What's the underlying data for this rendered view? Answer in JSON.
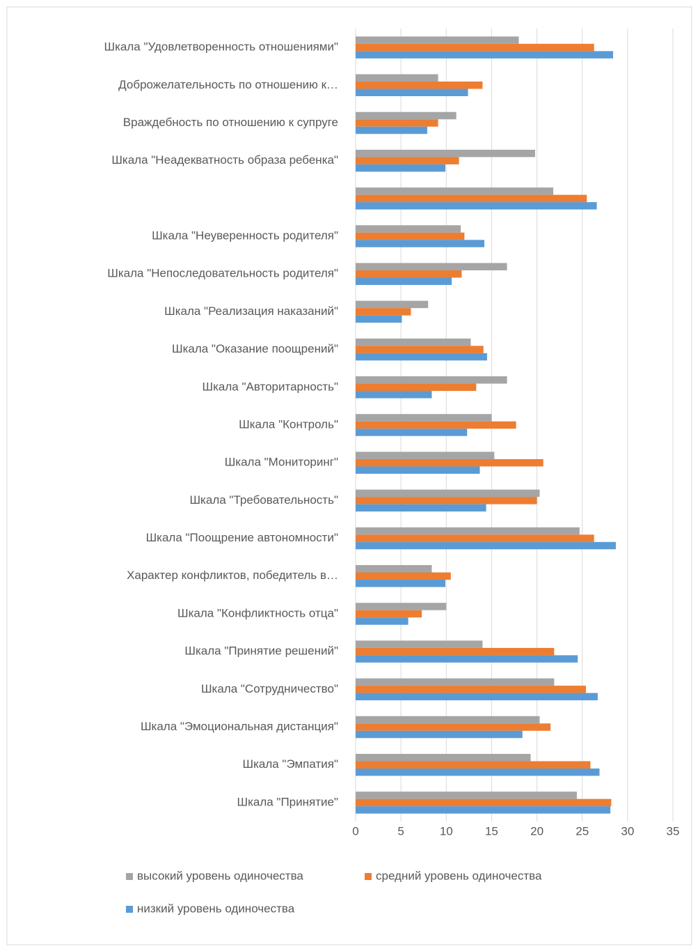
{
  "chart_data": {
    "type": "bar",
    "orientation": "horizontal",
    "categories": [
      "Шкала \"Удовлетворенность отношениями\"",
      "Доброжелательность по отношению к…",
      "Враждебность по отношению к супруге",
      "Шкала \"Неадекватность образа ребенка\"",
      null,
      "Шкала \"Неуверенность родителя\"",
      "Шкала \"Непоследовательность родителя\"",
      "Шкала \"Реализация наказаний\"",
      "Шкала \"Оказание поощрений\"",
      "Шкала \"Авторитарность\"",
      "Шкала \"Контроль\"",
      "Шкала \"Мониторинг\"",
      "Шкала \"Требовательность\"",
      "Шкала \"Поощрение автономности\"",
      "Характер конфликтов, победитель в…",
      "Шкала \"Конфликтность отца\"",
      "Шкала \"Принятие решений\"",
      "Шкала \"Сотрудничество\"",
      "Шкала \"Эмоциональная дистанция\"",
      "Шкала \"Эмпатия\"",
      "Шкала \"Принятие\""
    ],
    "series": [
      {
        "name": "высокий уровень одиночества",
        "color": "#a5a5a5",
        "values": [
          18.0,
          9.1,
          11.1,
          19.8,
          21.8,
          11.6,
          16.7,
          8.0,
          12.7,
          16.7,
          15.0,
          15.3,
          20.3,
          24.7,
          8.4,
          10.0,
          14.0,
          21.9,
          20.3,
          19.3,
          24.4
        ]
      },
      {
        "name": "средний уровень одиночества",
        "color": "#ed7d31",
        "values": [
          26.3,
          14.0,
          9.1,
          11.4,
          25.5,
          12.0,
          11.7,
          6.1,
          14.1,
          13.3,
          17.7,
          20.7,
          20.0,
          26.3,
          10.5,
          7.3,
          21.9,
          25.4,
          21.5,
          25.9,
          28.2
        ]
      },
      {
        "name": "низкий уровень одиночества",
        "color": "#5b9bd5",
        "values": [
          28.4,
          12.4,
          7.9,
          9.9,
          26.6,
          14.2,
          10.6,
          5.1,
          14.5,
          8.4,
          12.3,
          13.7,
          14.4,
          28.7,
          9.9,
          5.8,
          24.5,
          26.7,
          18.4,
          26.9,
          28.1
        ]
      }
    ],
    "xlim": [
      0,
      35
    ],
    "xticks": [
      0,
      5,
      10,
      15,
      20,
      25,
      30,
      35
    ],
    "grid": true,
    "legend": "bottom"
  }
}
